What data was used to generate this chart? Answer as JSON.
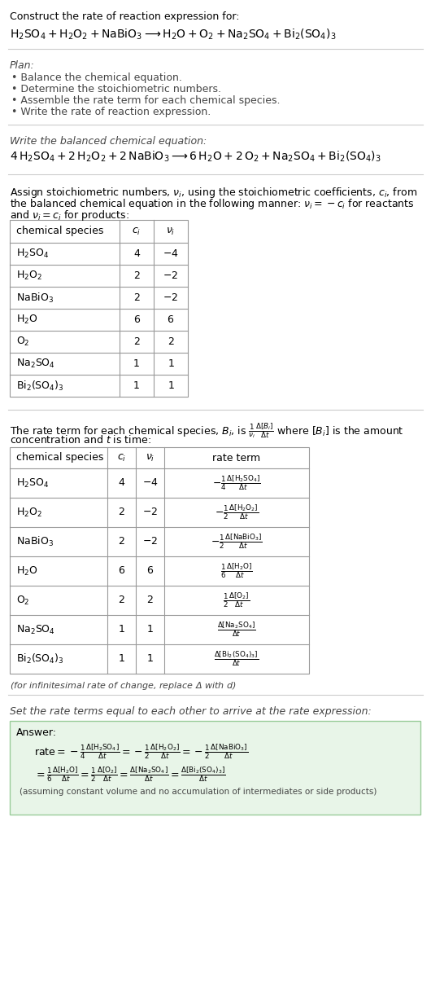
{
  "title_line1": "Construct the rate of reaction expression for:",
  "plan_header": "Plan:",
  "plan_items": [
    "• Balance the chemical equation.",
    "• Determine the stoichiometric numbers.",
    "• Assemble the rate term for each chemical species.",
    "• Write the rate of reaction expression."
  ],
  "balanced_header": "Write the balanced chemical equation:",
  "stoich_text1": "Assign stoichiometric numbers, $\\nu_i$, using the stoichiometric coefficients, $c_i$, from",
  "stoich_text2": "the balanced chemical equation in the following manner: $\\nu_i = -c_i$ for reactants",
  "stoich_text3": "and $\\nu_i = c_i$ for products:",
  "table1_species": [
    "$\\mathrm{H_2SO_4}$",
    "$\\mathrm{H_2O_2}$",
    "$\\mathrm{NaBiO_3}$",
    "$\\mathrm{H_2O}$",
    "$\\mathrm{O_2}$",
    "$\\mathrm{Na_2SO_4}$",
    "$\\mathrm{Bi_2(SO_4)_3}$"
  ],
  "table1_ci": [
    "4",
    "2",
    "2",
    "6",
    "2",
    "1",
    "1"
  ],
  "table1_vi": [
    "$-4$",
    "$-2$",
    "$-2$",
    "$6$",
    "$2$",
    "$1$",
    "$1$"
  ],
  "rate_text1": "The rate term for each chemical species, $B_i$, is $\\frac{1}{\\nu_i}\\frac{\\Delta[B_i]}{\\Delta t}$ where $[B_i]$ is the amount",
  "rate_text2": "concentration and $t$ is time:",
  "table2_rate_terms": [
    "$-\\frac{1}{4}\\frac{\\Delta[\\mathrm{H_2SO_4}]}{\\Delta t}$",
    "$-\\frac{1}{2}\\frac{\\Delta[\\mathrm{H_2O_2}]}{\\Delta t}$",
    "$-\\frac{1}{2}\\frac{\\Delta[\\mathrm{NaBiO_3}]}{\\Delta t}$",
    "$\\frac{1}{6}\\frac{\\Delta[\\mathrm{H_2O}]}{\\Delta t}$",
    "$\\frac{1}{2}\\frac{\\Delta[\\mathrm{O_2}]}{\\Delta t}$",
    "$\\frac{\\Delta[\\mathrm{Na_2SO_4}]}{\\Delta t}$",
    "$\\frac{\\Delta[\\mathrm{Bi_2(SO_4)_3}]}{\\Delta t}$"
  ],
  "infinitesimal_note": "(for infinitesimal rate of change, replace Δ with $d$)",
  "rate_set_header": "Set the rate terms equal to each other to arrive at the rate expression:",
  "answer_box_color": "#e8f5e8",
  "answer_box_edge": "#99cc99",
  "bg_color": "#ffffff",
  "text_color": "#000000",
  "gray_text": "#444444",
  "table_line_color": "#999999",
  "fs": 9,
  "fs_formula": 10
}
